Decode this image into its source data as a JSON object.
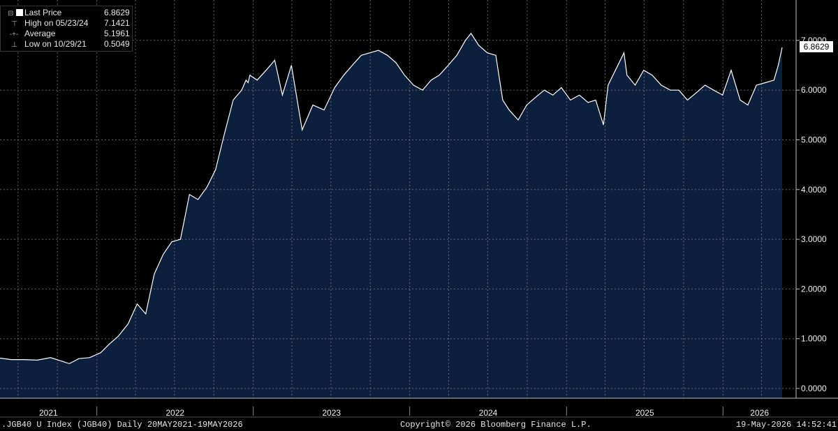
{
  "legend": {
    "last_price_label": "Last Price",
    "last_price_value": "6.8629",
    "high_label": "High on 05/23/24",
    "high_value": "7.1421",
    "average_label": "Average",
    "average_value": "5.1961",
    "low_label": "Low on 10/29/21",
    "low_value": "0.5049"
  },
  "last_value_tag": "6.8629",
  "footer": {
    "left": ".JGB40 U Index (JGB40) Daily 20MAY2021-19MAY2026",
    "center": "Copyright© 2026 Bloomberg Finance L.P.",
    "right": "19-May-2026 14:52:41"
  },
  "colors": {
    "background": "#000000",
    "area_fill": "#0c1f3d",
    "line": "#ffffff",
    "grid": "#7a7a7a"
  },
  "chart_data": {
    "type": "area",
    "title": "",
    "xlabel": "",
    "ylabel": "",
    "ylim": [
      0,
      7.6
    ],
    "xlim": [
      "2021-05-20",
      "2026-05-19"
    ],
    "grid": true,
    "y_ticks": [
      "0.0000",
      "1.0000",
      "2.0000",
      "3.0000",
      "4.0000",
      "5.0000",
      "6.0000",
      "7.0000"
    ],
    "x_ticks": [
      "2021",
      "2022",
      "2023",
      "2024",
      "2025",
      "2026"
    ],
    "series": [
      {
        "x": [
          "2021-05-20",
          "2021-06-15",
          "2021-07-15",
          "2021-08-15",
          "2021-09-15",
          "2021-10-29",
          "2021-11-20",
          "2021-12-15",
          "2022-01-10",
          "2022-01-31",
          "2022-02-20",
          "2022-03-15",
          "2022-04-05",
          "2022-04-25",
          "2022-05-15",
          "2022-06-05",
          "2022-06-25",
          "2022-07-15",
          "2022-08-05",
          "2022-08-25",
          "2022-09-15",
          "2022-10-05",
          "2022-10-25",
          "2022-11-15",
          "2022-12-05",
          "2022-12-15",
          "2022-12-20",
          "2022-12-24",
          "2023-01-10",
          "2023-01-31",
          "2023-02-20",
          "2023-03-10",
          "2023-03-31",
          "2023-04-25",
          "2023-05-20",
          "2023-06-15",
          "2023-07-10",
          "2023-07-31",
          "2023-08-20",
          "2023-09-10",
          "2023-09-30",
          "2023-10-20",
          "2023-11-10",
          "2023-11-30",
          "2023-12-20",
          "2024-01-10",
          "2024-01-31",
          "2024-02-20",
          "2024-03-10",
          "2024-03-31",
          "2024-04-20",
          "2024-05-10",
          "2024-05-23",
          "2024-06-10",
          "2024-06-30",
          "2024-07-20",
          "2024-08-05",
          "2024-08-20",
          "2024-09-10",
          "2024-09-30",
          "2024-10-20",
          "2024-11-10",
          "2024-11-30",
          "2024-12-20",
          "2025-01-10",
          "2025-01-31",
          "2025-02-20",
          "2025-03-10",
          "2025-03-28",
          "2025-04-08",
          "2025-04-25",
          "2025-05-15",
          "2025-05-22",
          "2025-06-10",
          "2025-06-30",
          "2025-07-20",
          "2025-08-10",
          "2025-08-31",
          "2025-09-20",
          "2025-10-10",
          "2025-10-31",
          "2025-11-20",
          "2025-12-10",
          "2025-12-31",
          "2026-01-20",
          "2026-02-10",
          "2026-02-28",
          "2026-03-20",
          "2026-04-10",
          "2026-04-30",
          "2026-05-10",
          "2026-05-19"
        ],
        "y": [
          0.61,
          0.58,
          0.58,
          0.57,
          0.62,
          0.5,
          0.6,
          0.62,
          0.72,
          0.9,
          1.05,
          1.3,
          1.7,
          1.5,
          2.3,
          2.7,
          2.95,
          3.0,
          3.9,
          3.8,
          4.05,
          4.4,
          5.1,
          5.8,
          6.0,
          6.2,
          6.15,
          6.3,
          6.2,
          6.4,
          6.6,
          5.9,
          6.5,
          5.2,
          5.7,
          5.6,
          6.05,
          6.3,
          6.5,
          6.7,
          6.75,
          6.8,
          6.7,
          6.55,
          6.3,
          6.1,
          6.0,
          6.2,
          6.3,
          6.5,
          6.7,
          7.0,
          7.14,
          6.9,
          6.75,
          6.7,
          5.8,
          5.6,
          5.4,
          5.7,
          5.85,
          6.0,
          5.9,
          6.05,
          5.8,
          5.9,
          5.75,
          5.8,
          5.3,
          6.1,
          6.4,
          6.75,
          6.3,
          6.1,
          6.4,
          6.3,
          6.1,
          6.0,
          6.0,
          5.8,
          5.95,
          6.1,
          6.0,
          5.9,
          6.4,
          5.8,
          5.7,
          6.1,
          6.15,
          6.2,
          6.5,
          6.86
        ]
      }
    ]
  }
}
